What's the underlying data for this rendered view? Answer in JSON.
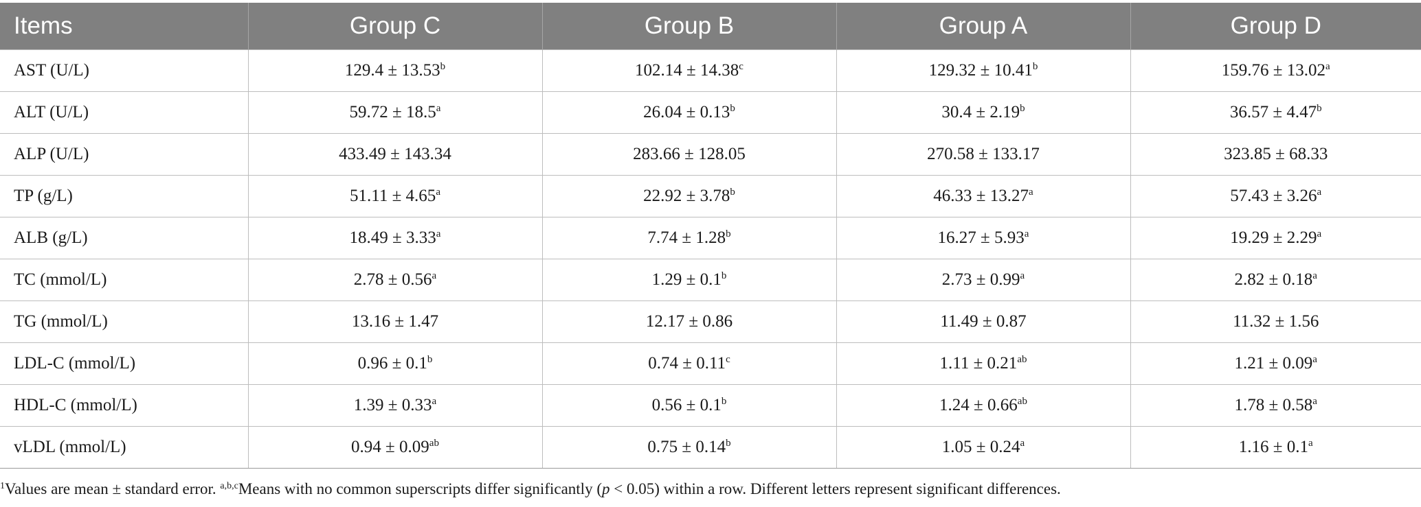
{
  "table": {
    "headers": [
      "Items",
      "Group C",
      "Group B",
      "Group A",
      "Group D"
    ],
    "rows": [
      {
        "item": "AST (U/L)",
        "cells": [
          {
            "value": "129.4 ± 13.53",
            "sup": "b"
          },
          {
            "value": "102.14 ± 14.38",
            "sup": "c"
          },
          {
            "value": "129.32 ± 10.41",
            "sup": "b"
          },
          {
            "value": "159.76 ± 13.02",
            "sup": "a"
          }
        ]
      },
      {
        "item": "ALT (U/L)",
        "cells": [
          {
            "value": "59.72 ± 18.5",
            "sup": "a"
          },
          {
            "value": "26.04 ± 0.13",
            "sup": "b"
          },
          {
            "value": "30.4 ± 2.19",
            "sup": "b"
          },
          {
            "value": "36.57 ± 4.47",
            "sup": "b"
          }
        ]
      },
      {
        "item": "ALP (U/L)",
        "cells": [
          {
            "value": "433.49 ± 143.34",
            "sup": ""
          },
          {
            "value": "283.66 ± 128.05",
            "sup": ""
          },
          {
            "value": "270.58 ± 133.17",
            "sup": ""
          },
          {
            "value": "323.85 ± 68.33",
            "sup": ""
          }
        ]
      },
      {
        "item": "TP (g/L)",
        "cells": [
          {
            "value": "51.11 ± 4.65",
            "sup": "a"
          },
          {
            "value": "22.92 ± 3.78",
            "sup": "b"
          },
          {
            "value": "46.33 ± 13.27",
            "sup": "a"
          },
          {
            "value": "57.43 ± 3.26",
            "sup": "a"
          }
        ]
      },
      {
        "item": "ALB (g/L)",
        "cells": [
          {
            "value": "18.49 ± 3.33",
            "sup": "a"
          },
          {
            "value": "7.74 ± 1.28",
            "sup": "b"
          },
          {
            "value": "16.27 ± 5.93",
            "sup": "a"
          },
          {
            "value": "19.29 ± 2.29",
            "sup": "a"
          }
        ]
      },
      {
        "item": "TC (mmol/L)",
        "cells": [
          {
            "value": "2.78 ± 0.56",
            "sup": "a"
          },
          {
            "value": "1.29 ± 0.1",
            "sup": "b"
          },
          {
            "value": "2.73 ± 0.99",
            "sup": "a"
          },
          {
            "value": "2.82 ± 0.18",
            "sup": "a"
          }
        ]
      },
      {
        "item": "TG (mmol/L)",
        "cells": [
          {
            "value": "13.16 ± 1.47",
            "sup": ""
          },
          {
            "value": "12.17 ± 0.86",
            "sup": ""
          },
          {
            "value": "11.49 ± 0.87",
            "sup": ""
          },
          {
            "value": "11.32 ± 1.56",
            "sup": ""
          }
        ]
      },
      {
        "item": "LDL-C (mmol/L)",
        "cells": [
          {
            "value": "0.96 ± 0.1",
            "sup": "b"
          },
          {
            "value": "0.74 ± 0.11",
            "sup": "c"
          },
          {
            "value": "1.11 ± 0.21",
            "sup": "ab"
          },
          {
            "value": "1.21 ± 0.09",
            "sup": "a"
          }
        ]
      },
      {
        "item": "HDL-C (mmol/L)",
        "cells": [
          {
            "value": "1.39 ± 0.33",
            "sup": "a"
          },
          {
            "value": "0.56 ± 0.1",
            "sup": "b"
          },
          {
            "value": "1.24 ± 0.66",
            "sup": "ab"
          },
          {
            "value": "1.78 ± 0.58",
            "sup": "a"
          }
        ]
      },
      {
        "item": "vLDL (mmol/L)",
        "cells": [
          {
            "value": "0.94 ± 0.09",
            "sup": "ab"
          },
          {
            "value": "0.75 ± 0.14",
            "sup": "b"
          },
          {
            "value": "1.05 ± 0.24",
            "sup": "a"
          },
          {
            "value": "1.16 ± 0.1",
            "sup": "a"
          }
        ]
      }
    ]
  },
  "footnote": {
    "marker1": "1",
    "text1": "Values are mean ± standard error. ",
    "marker2": "a,b,c",
    "text2": "Means with no common superscripts differ significantly (",
    "p": "p",
    "text3": " < 0.05) within a row. Different letters represent significant differences."
  }
}
